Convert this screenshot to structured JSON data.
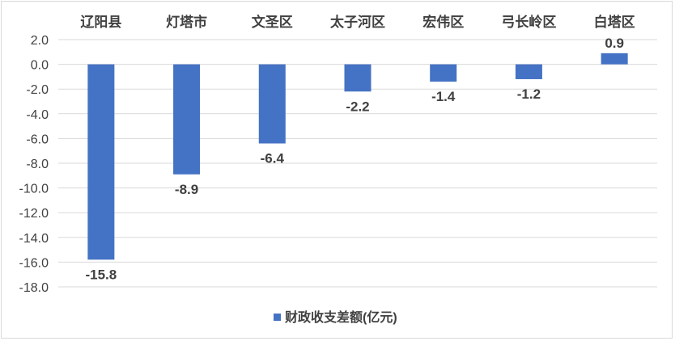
{
  "chart_data": {
    "type": "bar",
    "title": "",
    "xlabel": "",
    "ylabel": "",
    "categories": [
      "辽阳县",
      "灯塔市",
      "文圣区",
      "太子河区",
      "宏伟区",
      "弓长岭区",
      "白塔区"
    ],
    "series": [
      {
        "name": "财政收支差额(亿元)",
        "values": [
          -15.8,
          -8.9,
          -6.4,
          -2.2,
          -1.4,
          -1.2,
          0.9
        ],
        "data_labels": [
          "-15.8",
          "-8.9",
          "-6.4",
          "-2.2",
          "-1.4",
          "-1.2",
          "0.9"
        ]
      }
    ],
    "ylim": [
      -18,
      2
    ],
    "yticks": [
      2,
      0,
      -2,
      -4,
      -6,
      -8,
      -10,
      -12,
      -14,
      -16,
      -18
    ],
    "ytick_labels": [
      "2.0",
      "0.0",
      "-2.0",
      "-4.0",
      "-6.0",
      "-8.0",
      "-10.0",
      "-12.0",
      "-14.0",
      "-16.0",
      "-18.0"
    ],
    "category_axis_position": "top",
    "grid": true,
    "legend_position": "bottom",
    "bar_color": "#4472c4",
    "grid_color": "#d9d9d9",
    "text_color": "#404040"
  }
}
